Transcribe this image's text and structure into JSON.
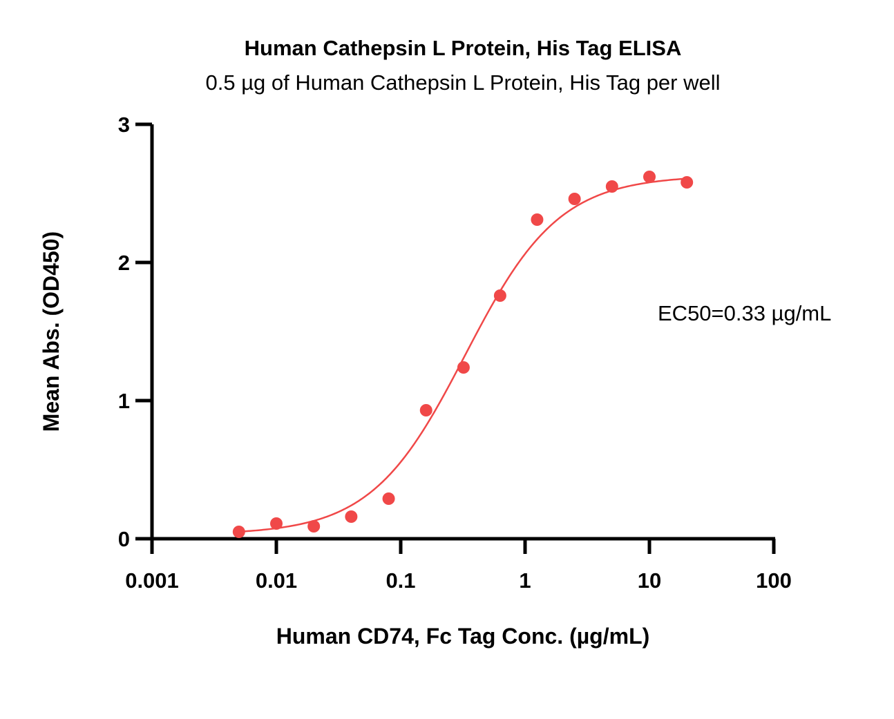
{
  "chart_data": {
    "type": "scatter",
    "title": "Human Cathepsin L Protein, His Tag ELISA",
    "subtitle": "0.5 µg of Human Cathepsin L Protein, His Tag per well",
    "xlabel": "Human CD74, Fc Tag Conc. (µg/mL)",
    "ylabel": "Mean Abs. (OD450)",
    "x_scale": "log",
    "xlim": [
      0.001,
      100
    ],
    "ylim": [
      0,
      3
    ],
    "x_ticks": [
      0.001,
      0.01,
      0.1,
      1,
      10,
      100
    ],
    "x_tick_labels": [
      "0.001",
      "0.01",
      "0.1",
      "1",
      "10",
      "100"
    ],
    "y_ticks": [
      0,
      1,
      2,
      3
    ],
    "y_tick_labels": [
      "0",
      "1",
      "2",
      "3"
    ],
    "grid": false,
    "annotation": "EC50=0.33 µg/mL",
    "color": "#f04848",
    "series": [
      {
        "x": [
          0.005,
          0.01,
          0.02,
          0.04,
          0.08,
          0.16,
          0.32,
          0.63,
          1.25,
          2.5,
          5,
          10,
          20
        ],
        "y": [
          0.05,
          0.11,
          0.09,
          0.16,
          0.29,
          0.93,
          1.24,
          1.76,
          2.31,
          2.46,
          2.55,
          2.62,
          2.58
        ]
      }
    ],
    "fit_curve": {
      "model": "4PL",
      "bottom": 0.03,
      "top": 2.63,
      "ec50": 0.33,
      "hill": 1.15
    }
  }
}
